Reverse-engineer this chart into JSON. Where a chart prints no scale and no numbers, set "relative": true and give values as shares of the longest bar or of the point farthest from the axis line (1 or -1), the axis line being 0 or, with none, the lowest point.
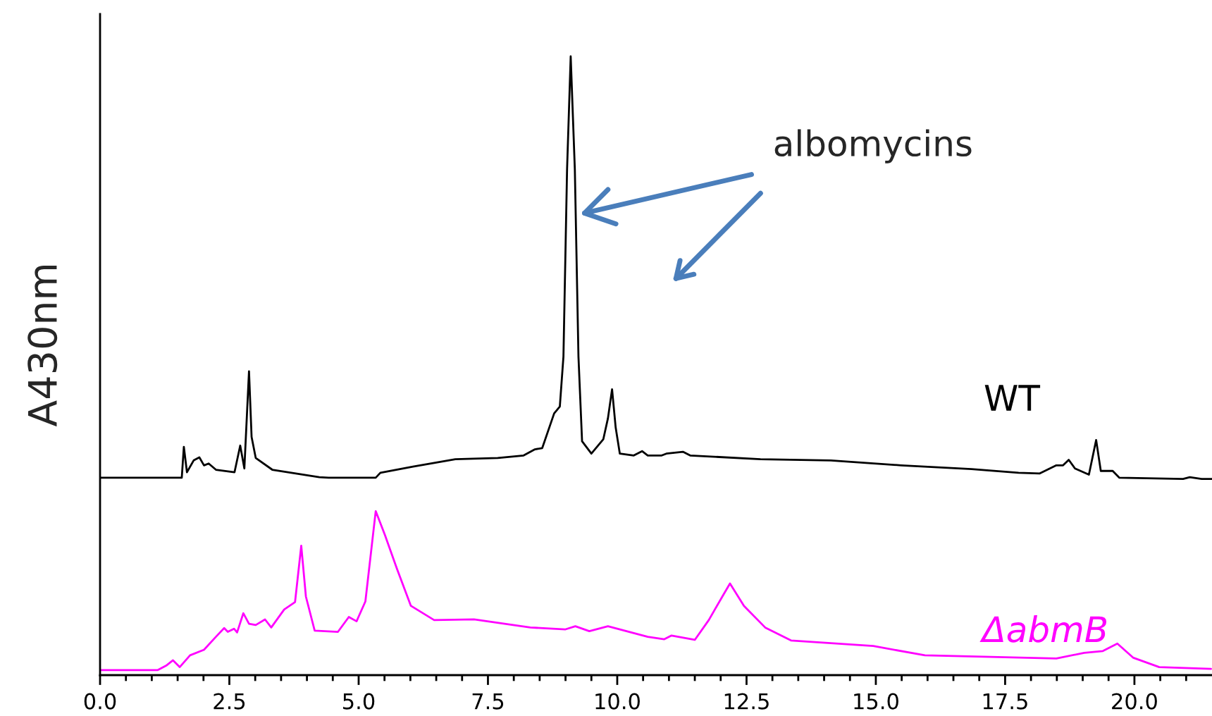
{
  "chart_data": {
    "type": "line",
    "relative": true,
    "ylabel": "A430nm",
    "xlim": [
      0,
      21.5
    ],
    "xticks": [
      {
        "value": 0,
        "label": "0.0"
      },
      {
        "value": 0.5,
        "label": null
      },
      {
        "value": 1,
        "label": null
      },
      {
        "value": 1.5,
        "label": null
      },
      {
        "value": 2,
        "label": null
      },
      {
        "value": 2.5,
        "label": "2.5"
      },
      {
        "value": 3,
        "label": null
      },
      {
        "value": 3.5,
        "label": null
      },
      {
        "value": 4,
        "label": null
      },
      {
        "value": 4.5,
        "label": null
      },
      {
        "value": 5,
        "label": "5.0"
      },
      {
        "value": 5.5,
        "label": null
      },
      {
        "value": 6,
        "label": null
      },
      {
        "value": 6.5,
        "label": null
      },
      {
        "value": 7,
        "label": null
      },
      {
        "value": 7.5,
        "label": "7.5"
      },
      {
        "value": 8,
        "label": null
      },
      {
        "value": 8.5,
        "label": null
      },
      {
        "value": 9,
        "label": null
      },
      {
        "value": 9.5,
        "label": null
      },
      {
        "value": 10,
        "label": "10.0"
      },
      {
        "value": 10.5,
        "label": null
      },
      {
        "value": 11,
        "label": null
      },
      {
        "value": 11.5,
        "label": null
      },
      {
        "value": 12,
        "label": null
      },
      {
        "value": 12.5,
        "label": "12.5"
      },
      {
        "value": 13,
        "label": null
      },
      {
        "value": 13.5,
        "label": null
      },
      {
        "value": 14,
        "label": null
      },
      {
        "value": 14.5,
        "label": null
      },
      {
        "value": 15,
        "label": "15.0"
      },
      {
        "value": 15.5,
        "label": null
      },
      {
        "value": 16,
        "label": null
      },
      {
        "value": 16.5,
        "label": null
      },
      {
        "value": 17,
        "label": null
      },
      {
        "value": 17.5,
        "label": "17.5"
      },
      {
        "value": 18,
        "label": null
      },
      {
        "value": 18.5,
        "label": null
      },
      {
        "value": 19,
        "label": null
      },
      {
        "value": 19.5,
        "label": null
      },
      {
        "value": 20,
        "label": "20.0"
      },
      {
        "value": 20.5,
        "label": null
      },
      {
        "value": 21,
        "label": null
      }
    ],
    "grid": false,
    "marker": "none",
    "line_style": "solid",
    "annotations": [
      {
        "text": "albomycins",
        "x": 9.28,
        "y": 0.745
      }
    ],
    "series": [
      {
        "name": "WT",
        "color": "#000000",
        "x": [
          0,
          1.58,
          1.62,
          1.68,
          1.81,
          1.92,
          2.01,
          2.1,
          2.24,
          2.6,
          2.71,
          2.79,
          2.88,
          2.93,
          3.01,
          3.33,
          4.24,
          4.42,
          5.33,
          5.42,
          6.05,
          6.87,
          7.69,
          8.19,
          8.41,
          8.55,
          8.78,
          8.89,
          8.96,
          9.03,
          9.1,
          9.18,
          9.25,
          9.32,
          9.5,
          9.73,
          9.82,
          9.9,
          9.97,
          10.05,
          10.32,
          10.48,
          10.59,
          10.86,
          10.95,
          11.27,
          11.41,
          12.77,
          14.13,
          15.49,
          16.85,
          17.76,
          18.17,
          18.49,
          18.62,
          18.73,
          18.85,
          19.12,
          19.26,
          19.35,
          19.58,
          19.71,
          20.94,
          21.07,
          21.3,
          21.5
        ],
        "values": [
          0.319,
          0.319,
          0.369,
          0.328,
          0.347,
          0.352,
          0.339,
          0.342,
          0.332,
          0.328,
          0.371,
          0.334,
          0.491,
          0.385,
          0.351,
          0.332,
          0.32,
          0.319,
          0.319,
          0.327,
          0.337,
          0.349,
          0.351,
          0.355,
          0.365,
          0.367,
          0.423,
          0.434,
          0.515,
          0.818,
          1.0,
          0.818,
          0.515,
          0.378,
          0.358,
          0.381,
          0.415,
          0.462,
          0.4,
          0.358,
          0.355,
          0.362,
          0.355,
          0.355,
          0.358,
          0.361,
          0.355,
          0.349,
          0.347,
          0.339,
          0.333,
          0.327,
          0.326,
          0.339,
          0.339,
          0.348,
          0.334,
          0.324,
          0.38,
          0.33,
          0.33,
          0.319,
          0.317,
          0.32,
          0.317,
          0.317
        ]
      },
      {
        "name": "ΔabmB",
        "color": "#ff00ff",
        "x": [
          0,
          1.11,
          1.29,
          1.41,
          1.54,
          1.74,
          2.01,
          2.24,
          2.4,
          2.47,
          2.59,
          2.65,
          2.77,
          2.88,
          3.01,
          3.19,
          3.31,
          3.56,
          3.77,
          3.89,
          3.98,
          4.15,
          4.6,
          4.81,
          4.96,
          5.13,
          5.33,
          5.51,
          5.74,
          6.01,
          6.46,
          7.23,
          8.32,
          9.0,
          9.19,
          9.46,
          9.82,
          10.59,
          10.91,
          11.05,
          11.5,
          11.77,
          12.06,
          12.18,
          12.45,
          12.86,
          13.36,
          14.95,
          15.95,
          18.49,
          19.03,
          19.39,
          19.67,
          19.98,
          20.48,
          21.48
        ],
        "values": [
          0.008,
          0.008,
          0.016,
          0.024,
          0.013,
          0.032,
          0.041,
          0.062,
          0.076,
          0.07,
          0.075,
          0.069,
          0.1,
          0.083,
          0.081,
          0.09,
          0.077,
          0.106,
          0.118,
          0.209,
          0.127,
          0.072,
          0.07,
          0.094,
          0.087,
          0.119,
          0.265,
          0.226,
          0.172,
          0.112,
          0.089,
          0.09,
          0.077,
          0.074,
          0.079,
          0.071,
          0.079,
          0.062,
          0.058,
          0.064,
          0.057,
          0.089,
          0.131,
          0.148,
          0.112,
          0.077,
          0.056,
          0.047,
          0.032,
          0.027,
          0.036,
          0.039,
          0.051,
          0.028,
          0.013,
          0.01
        ]
      }
    ]
  }
}
